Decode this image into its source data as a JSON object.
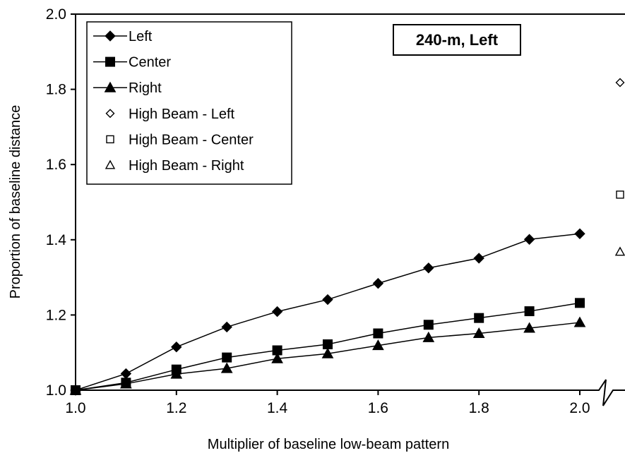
{
  "chart_data": {
    "type": "line",
    "title": "",
    "annotation": "240-m, Left",
    "xlabel": "Multiplier of baseline low-beam pattern",
    "ylabel": "Proportion of baseline distance",
    "xlim": [
      1.0,
      2.0
    ],
    "ylim": [
      1.0,
      2.0
    ],
    "x_ticks": [
      "1.0",
      "1.2",
      "1.4",
      "1.6",
      "1.8",
      "2.0"
    ],
    "y_ticks": [
      "1.0",
      "1.2",
      "1.4",
      "1.6",
      "1.8",
      "2.0"
    ],
    "grid": false,
    "legend_position": "top-left",
    "x": [
      1.0,
      1.1,
      1.2,
      1.3,
      1.4,
      1.5,
      1.6,
      1.7,
      1.8,
      1.9,
      2.0
    ],
    "series": [
      {
        "name": "Left",
        "marker": "diamond-filled",
        "values": [
          1.0,
          1.044,
          1.115,
          1.168,
          1.209,
          1.241,
          1.284,
          1.325,
          1.351,
          1.401,
          1.416
        ]
      },
      {
        "name": "Center",
        "marker": "square-filled",
        "values": [
          1.0,
          1.02,
          1.055,
          1.087,
          1.106,
          1.122,
          1.151,
          1.174,
          1.192,
          1.21,
          1.232
        ]
      },
      {
        "name": "Right",
        "marker": "triangle-filled",
        "values": [
          1.0,
          1.017,
          1.043,
          1.058,
          1.084,
          1.097,
          1.119,
          1.14,
          1.151,
          1.165,
          1.18
        ]
      }
    ],
    "high_beam": [
      {
        "name": "High Beam - Left",
        "marker": "diamond-open",
        "value": 1.818
      },
      {
        "name": "High Beam - Center",
        "marker": "square-open",
        "value": 1.52
      },
      {
        "name": "High Beam - Right",
        "marker": "triangle-open",
        "value": 1.368
      }
    ],
    "axis_break": true
  }
}
